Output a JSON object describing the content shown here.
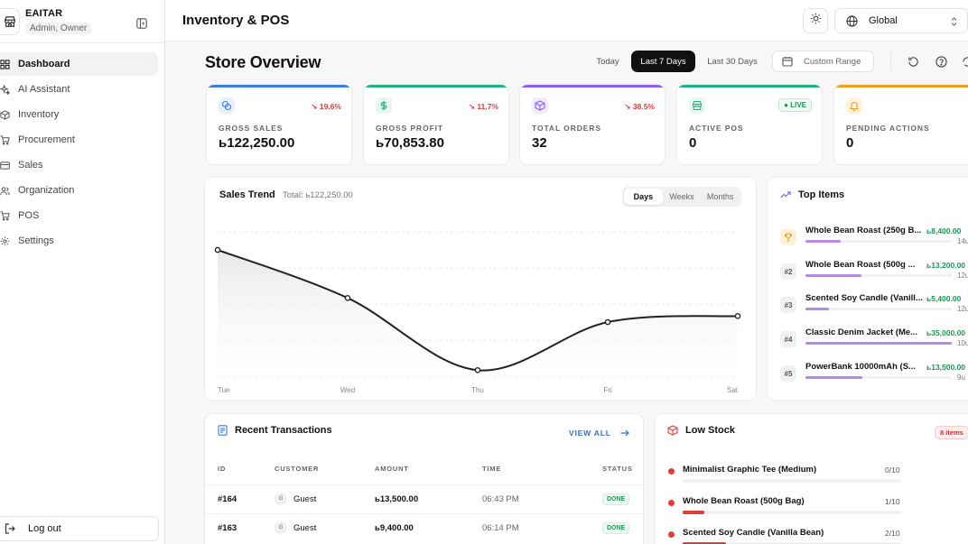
{
  "sidebar": {
    "brand_name": "EAITAR",
    "brand_role": "Admin, Owner",
    "items": [
      {
        "label": "Dashboard",
        "icon": "dashboard-icon",
        "active": true
      },
      {
        "label": "AI Assistant",
        "icon": "sparkle-icon"
      },
      {
        "label": "Inventory",
        "icon": "box-icon"
      },
      {
        "label": "Procurement",
        "icon": "cart-icon"
      },
      {
        "label": "Sales",
        "icon": "card-icon"
      },
      {
        "label": "Organization",
        "icon": "users-icon"
      },
      {
        "label": "POS",
        "icon": "cart-icon"
      },
      {
        "label": "Settings",
        "icon": "gear-icon"
      }
    ],
    "logout_label": "Log out"
  },
  "topbar": {
    "title": "Inventory & POS",
    "region": "Global"
  },
  "overview": {
    "title": "Store Overview",
    "ranges": [
      "Today",
      "Last 7 Days",
      "Last 30 Days"
    ],
    "active_range": "Last 7 Days",
    "custom_range_label": "Custom Range"
  },
  "kpis": [
    {
      "label": "GROSS SALES",
      "value": "ь122,250.00",
      "change": "↘ 19.6%",
      "color": "#3b7be0",
      "icon": "coins-icon"
    },
    {
      "label": "GROSS PROFIT",
      "value": "ь70,853.80",
      "change": "↘ 11.7%",
      "color": "#22b07d",
      "icon": "dollar-icon"
    },
    {
      "label": "TOTAL ORDERS",
      "value": "32",
      "change": "↘ 38.5%",
      "color": "#8b5cf6",
      "icon": "cube-icon"
    },
    {
      "label": "ACTIVE POS",
      "value": "0",
      "badge": "● LIVE",
      "color": "#22b07d",
      "icon": "store-icon"
    },
    {
      "label": "PENDING ACTIONS",
      "value": "0",
      "color": "#f0a020",
      "icon": "bell-icon"
    }
  ],
  "sales_trend": {
    "title": "Sales Trend",
    "total": "Total: ь122,250.00",
    "tabs": [
      "Days",
      "Weeks",
      "Months"
    ],
    "active_tab": "Days"
  },
  "chart_data": {
    "type": "area",
    "x": [
      "Tue",
      "Wed",
      "Thu",
      "Fri",
      "Sat"
    ],
    "values": [
      18,
      10,
      -2,
      6,
      7
    ],
    "ylim": [
      -3,
      21
    ],
    "grid": true,
    "line_color": "#222222"
  },
  "top_items": {
    "title": "Top Items",
    "items": [
      {
        "rank": "",
        "name": "Whole Bean Roast (250g B...",
        "amount": "ь8,400.00",
        "qty": "14u",
        "fill": 0.24
      },
      {
        "rank": "#2",
        "name": "Whole Bean Roast (500g ...",
        "amount": "ь13,200.00",
        "qty": "12u",
        "fill": 0.38
      },
      {
        "rank": "#3",
        "name": "Scented Soy Candle (Vanill...",
        "amount": "ь5,400.00",
        "qty": "12u",
        "fill": 0.16
      },
      {
        "rank": "#4",
        "name": "Classic Denim Jacket (Me...",
        "amount": "ь35,000.00",
        "qty": "10u",
        "fill": 1.0
      },
      {
        "rank": "#5",
        "name": "PowerBank 10000mAh (S...",
        "amount": "ь13,500.00",
        "qty": "9u",
        "fill": 0.39
      }
    ]
  },
  "recent": {
    "title": "Recent Transactions",
    "view_all": "VIEW ALL",
    "columns": [
      "ID",
      "CUSTOMER",
      "AMOUNT",
      "TIME",
      "STATUS"
    ],
    "rows": [
      {
        "id": "#164",
        "initial": "G",
        "customer": "Guest",
        "amount": "ь13,500.00",
        "time": "06:43 PM",
        "status": "DONE"
      },
      {
        "id": "#163",
        "initial": "G",
        "customer": "Guest",
        "amount": "ь9,400.00",
        "time": "06:14 PM",
        "status": "DONE"
      }
    ]
  },
  "low_stock": {
    "title": "Low Stock",
    "badge": "8 items",
    "items": [
      {
        "name": "Minimalist Graphic Tee (Medium)",
        "qty": "0/10",
        "level": 0.0
      },
      {
        "name": "Whole Bean Roast (500g Bag)",
        "qty": "1/10",
        "level": 0.1
      },
      {
        "name": "Scented Soy Candle (Vanilla Bean)",
        "qty": "2/10",
        "level": 0.2
      }
    ]
  }
}
